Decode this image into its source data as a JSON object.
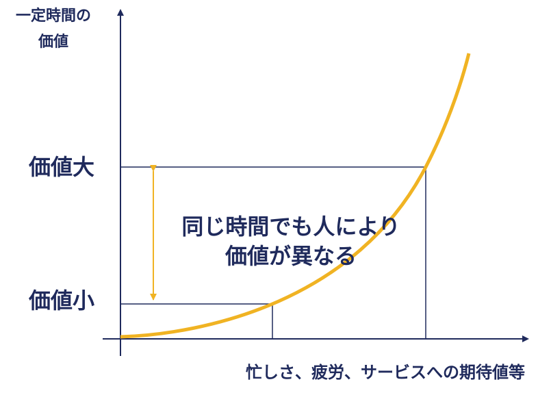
{
  "y_axis_label": [
    "一定時間の",
    "価値"
  ],
  "levels": {
    "high": "価値大",
    "low": "価値小"
  },
  "message": [
    "同じ時間でも人により",
    "価値が異なる"
  ],
  "x_axis_label": "忙しさ、疲労、サービスへの期待値等"
}
